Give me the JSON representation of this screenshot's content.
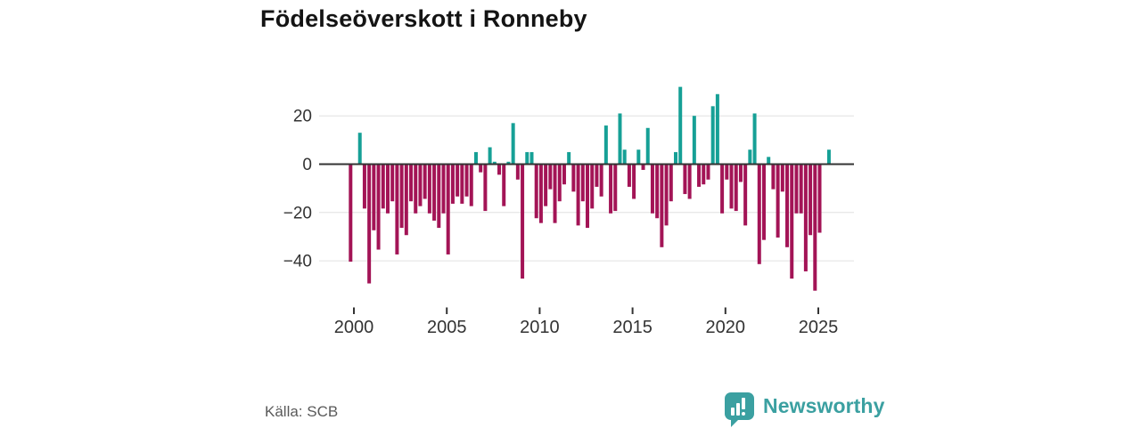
{
  "title": "Födelseöverskott i Ronneby",
  "source": "Källa: SCB",
  "branding": {
    "name": "Newsworthy"
  },
  "colors": {
    "positive_bar": "#16a096",
    "negative_bar": "#a31456",
    "brand_teal": "#3ba0a1",
    "axis_text": "#333333",
    "grid_line": "#e0e0e0",
    "zero_line": "#333333",
    "title_text": "#141414",
    "source_text": "#5a5a5a"
  },
  "chart_data": {
    "type": "bar",
    "title": "Födelseöverskott i Ronneby",
    "xlabel": "",
    "ylabel": "",
    "frequency": "quarterly",
    "grid": true,
    "legend": false,
    "ylim": [
      -55,
      35
    ],
    "y_ticks": [
      {
        "label": "20",
        "value": 20
      },
      {
        "label": "0",
        "value": 0
      },
      {
        "label": "−20",
        "value": -20
      },
      {
        "label": "−40",
        "value": -40
      }
    ],
    "x_ticks": [
      {
        "label": "2000",
        "year": 2000
      },
      {
        "label": "2005",
        "year": 2005
      },
      {
        "label": "2010",
        "year": 2010
      },
      {
        "label": "2015",
        "year": 2015
      },
      {
        "label": "2020",
        "year": 2020
      },
      {
        "label": "2025",
        "year": 2025
      }
    ],
    "x_labels": [
      "1999-Q4",
      "2000-Q1",
      "2000-Q2",
      "2000-Q3",
      "2000-Q4",
      "2001-Q1",
      "2001-Q2",
      "2001-Q3",
      "2001-Q4",
      "2002-Q1",
      "2002-Q2",
      "2002-Q3",
      "2002-Q4",
      "2003-Q1",
      "2003-Q2",
      "2003-Q3",
      "2003-Q4",
      "2004-Q1",
      "2004-Q2",
      "2004-Q3",
      "2004-Q4",
      "2005-Q1",
      "2005-Q2",
      "2005-Q3",
      "2005-Q4",
      "2006-Q1",
      "2006-Q2",
      "2006-Q3",
      "2006-Q4",
      "2007-Q1",
      "2007-Q2",
      "2007-Q3",
      "2007-Q4",
      "2008-Q1",
      "2008-Q2",
      "2008-Q3",
      "2008-Q4",
      "2009-Q1",
      "2009-Q2",
      "2009-Q3",
      "2009-Q4",
      "2010-Q1",
      "2010-Q2",
      "2010-Q3",
      "2010-Q4",
      "2011-Q1",
      "2011-Q2",
      "2011-Q3",
      "2011-Q4",
      "2012-Q1",
      "2012-Q2",
      "2012-Q3",
      "2012-Q4",
      "2013-Q1",
      "2013-Q2",
      "2013-Q3",
      "2013-Q4",
      "2014-Q1",
      "2014-Q2",
      "2014-Q3",
      "2014-Q4",
      "2015-Q1",
      "2015-Q2",
      "2015-Q3",
      "2015-Q4",
      "2016-Q1",
      "2016-Q2",
      "2016-Q3",
      "2016-Q4",
      "2017-Q1",
      "2017-Q2",
      "2017-Q3",
      "2017-Q4",
      "2018-Q1",
      "2018-Q2",
      "2018-Q3",
      "2018-Q4",
      "2019-Q1",
      "2019-Q2",
      "2019-Q3",
      "2019-Q4",
      "2020-Q1",
      "2020-Q2",
      "2020-Q3",
      "2020-Q4",
      "2021-Q1",
      "2021-Q2",
      "2021-Q3",
      "2021-Q4",
      "2022-Q1",
      "2022-Q2",
      "2022-Q3",
      "2022-Q4",
      "2023-Q1",
      "2023-Q2",
      "2023-Q3",
      "2023-Q4",
      "2024-Q1",
      "2024-Q2",
      "2024-Q3",
      "2024-Q4",
      "2025-Q1",
      "2025-Q2",
      "2025-Q3"
    ],
    "values": [
      -40,
      0,
      13,
      -18,
      -49,
      -27,
      -35,
      -18,
      -20,
      -15,
      -37,
      -26,
      -29,
      -15,
      -20,
      -17,
      -14,
      -20,
      -23,
      -26,
      -20,
      -37,
      -16,
      -13,
      -16,
      -13,
      -17,
      5,
      -3,
      -19,
      7,
      1,
      -4,
      -17,
      1,
      17,
      -6,
      -47,
      5,
      5,
      -22,
      -24,
      -17,
      -10,
      -24,
      -15,
      -8,
      5,
      -11,
      -25,
      -15,
      -26,
      -18,
      -9,
      -13,
      16,
      -20,
      -19,
      21,
      6,
      -9,
      -14,
      6,
      -2,
      15,
      -20,
      -22,
      -34,
      -25,
      -15,
      5,
      32,
      -12,
      -14,
      20,
      -9,
      -8,
      -6,
      24,
      29,
      -20,
      -6,
      -18,
      -19,
      -7,
      -25,
      6,
      21,
      -41,
      -31,
      3,
      -10,
      -30,
      -11,
      -34,
      -47,
      -20,
      -20,
      -44,
      -29,
      -52,
      -28,
      0,
      6
    ]
  }
}
